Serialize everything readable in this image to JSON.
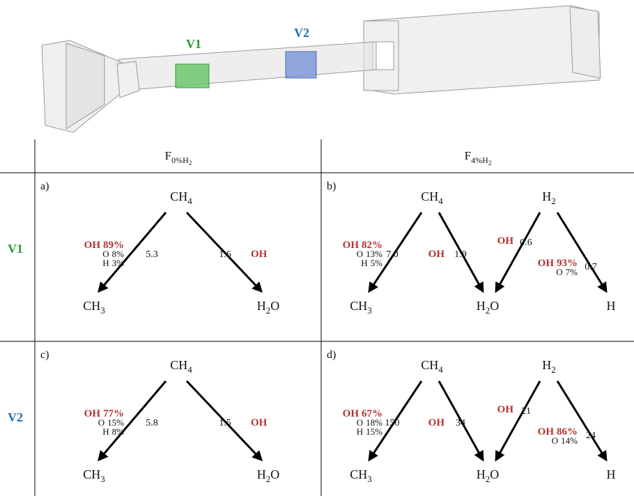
{
  "render": {
    "labels": [
      "V1",
      "V2"
    ]
  },
  "table": {
    "header": [
      {
        "main": "F",
        "sub": "0%H",
        "subsub": "2"
      },
      {
        "main": "F",
        "sub": "4%H",
        "subsub": "2"
      }
    ],
    "rows": [
      "V1",
      "V2"
    ],
    "panels": [
      {
        "tag": "a)",
        "nodes": [
          [
            "CH",
            "4"
          ],
          [
            "CH",
            "3"
          ],
          [
            "H",
            "2",
            "O"
          ]
        ],
        "edges": [
          {
            "contributors": [
              [
                "OH",
                "89%"
              ],
              [
                "O",
                "8%"
              ],
              [
                "H",
                "3%"
              ]
            ],
            "rate": "5.3"
          },
          {
            "contributors": [
              [
                "OH"
              ]
            ],
            "rate": "1.6"
          }
        ]
      },
      {
        "tag": "b)",
        "nodes": [
          [
            "CH",
            "4"
          ],
          [
            "H",
            "2"
          ],
          [
            "CH",
            "3"
          ],
          [
            "H",
            "2",
            "O"
          ],
          [
            "H"
          ]
        ],
        "edges": [
          {
            "contributors": [
              [
                "OH",
                "82%"
              ],
              [
                "O",
                "13%"
              ],
              [
                "H",
                "5%"
              ]
            ],
            "rate": "7.0"
          },
          {
            "contributors": [
              [
                "OH"
              ]
            ],
            "rate": "1.9"
          },
          {
            "contributors": [
              [
                "OH"
              ]
            ],
            "rate": "0.6"
          },
          {
            "contributors": [
              [
                "OH",
                "93%"
              ],
              [
                "O",
                "7%"
              ]
            ],
            "rate": "0.7"
          }
        ]
      },
      {
        "tag": "c)",
        "nodes": [
          [
            "CH",
            "4"
          ],
          [
            "CH",
            "3"
          ],
          [
            "H",
            "2",
            "O"
          ]
        ],
        "edges": [
          {
            "contributors": [
              [
                "OH",
                "77%"
              ],
              [
                "O",
                "15%"
              ],
              [
                "H",
                "8%"
              ]
            ],
            "rate": "5.8"
          },
          {
            "contributors": [
              [
                "OH"
              ]
            ],
            "rate": "1.5"
          }
        ]
      },
      {
        "tag": "d)",
        "nodes": [
          [
            "CH",
            "4"
          ],
          [
            "H",
            "2"
          ],
          [
            "CH",
            "3"
          ],
          [
            "H",
            "2",
            "O"
          ],
          [
            "H"
          ]
        ],
        "edges": [
          {
            "contributors": [
              [
                "OH",
                "67%"
              ],
              [
                "O",
                "18%"
              ],
              [
                "H",
                "15%"
              ]
            ],
            "rate": "150"
          },
          {
            "contributors": [
              [
                "OH"
              ]
            ],
            "rate": "34"
          },
          {
            "contributors": [
              [
                "OH"
              ]
            ],
            "rate": "21"
          },
          {
            "contributors": [
              [
                "OH",
                "86%"
              ],
              [
                "O",
                "14%"
              ]
            ],
            "rate": "24"
          }
        ]
      }
    ]
  }
}
